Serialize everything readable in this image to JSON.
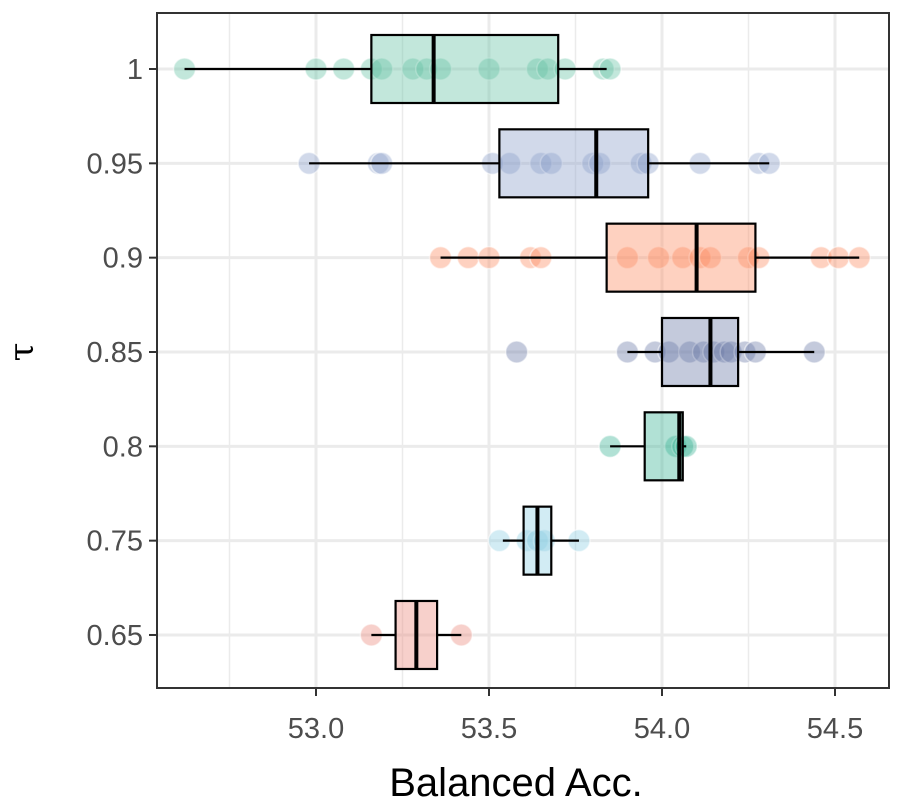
{
  "chart_data": {
    "type": "box",
    "orientation": "horizontal",
    "xlabel": "Balanced Acc.",
    "ylabel": "τ",
    "xlim": [
      52.6,
      54.6
    ],
    "x_ticks": [
      "53.0",
      "53.5",
      "54.0",
      "54.5"
    ],
    "grid": true,
    "legend": "none",
    "categories": [
      "1",
      "0.95",
      "0.9",
      "0.85",
      "0.8",
      "0.75",
      "0.65"
    ],
    "series": [
      {
        "category": "1",
        "color": "#66c2a5",
        "box": {
          "whisker_low": 52.62,
          "q1": 53.16,
          "median": 53.34,
          "q3": 53.7,
          "whisker_high": 53.84
        },
        "points": [
          52.62,
          53.0,
          53.08,
          53.16,
          53.19,
          53.28,
          53.32,
          53.36,
          53.5,
          53.64,
          53.67,
          53.72,
          53.83,
          53.85
        ]
      },
      {
        "category": "0.95",
        "color": "#8da0cb",
        "box": {
          "whisker_low": 52.98,
          "q1": 53.53,
          "median": 53.81,
          "q3": 53.96,
          "whisker_high": 54.31
        },
        "points": [
          52.98,
          53.18,
          53.19,
          53.51,
          53.56,
          53.65,
          53.68,
          53.8,
          53.82,
          53.94,
          53.96,
          54.11,
          54.28,
          54.31
        ]
      },
      {
        "category": "0.9",
        "color": "#fc8d62",
        "box": {
          "whisker_low": 53.36,
          "q1": 53.84,
          "median": 54.1,
          "q3": 54.27,
          "whisker_high": 54.57
        },
        "points": [
          53.36,
          53.44,
          53.5,
          53.62,
          53.65,
          53.9,
          53.99,
          54.06,
          54.11,
          54.14,
          54.25,
          54.28,
          54.46,
          54.51,
          54.57
        ]
      },
      {
        "category": "0.85",
        "color": "#6b7aa8",
        "box": {
          "whisker_low": 53.9,
          "q1": 54.0,
          "median": 54.14,
          "q3": 54.22,
          "whisker_high": 54.44
        },
        "points": [
          53.58,
          53.9,
          53.98,
          54.02,
          54.08,
          54.12,
          54.15,
          54.18,
          54.2,
          54.24,
          54.27,
          54.44
        ]
      },
      {
        "category": "0.8",
        "color": "#3cb596",
        "box": {
          "whisker_low": 53.85,
          "q1": 53.95,
          "median": 54.05,
          "q3": 54.06,
          "whisker_high": 54.07
        },
        "points": [
          53.85,
          54.04,
          54.06,
          54.07
        ]
      },
      {
        "category": "0.75",
        "color": "#8ecfe3",
        "box": {
          "whisker_low": 53.54,
          "q1": 53.6,
          "median": 53.64,
          "q3": 53.68,
          "whisker_high": 53.76
        },
        "points": [
          53.53,
          53.61,
          53.64,
          53.66,
          53.76
        ]
      },
      {
        "category": "0.65",
        "color": "#ea8a7c",
        "box": {
          "whisker_low": 53.16,
          "q1": 53.23,
          "median": 53.29,
          "q3": 53.35,
          "whisker_high": 53.42
        },
        "points": [
          53.16,
          53.42
        ]
      }
    ]
  }
}
